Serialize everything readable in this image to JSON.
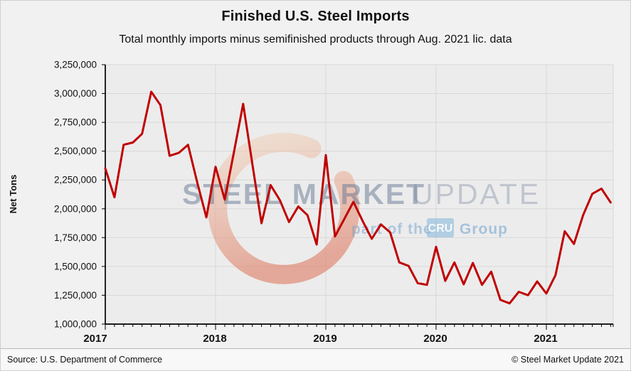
{
  "header": {
    "title": "Finished U.S. Steel Imports",
    "subtitle": "Total monthly imports minus semifinished products through Aug. 2021 lic. data"
  },
  "footer": {
    "source": "Source: U.S. Department of Commerce",
    "copyright": "© Steel Market Update 2021"
  },
  "watermark": {
    "line1_strong": "STEEL MARKET",
    "line1_light": "UPDATE",
    "line2_prefix": "part of the",
    "line2_box": "CRU",
    "line2_suffix": "Group"
  },
  "chart_data": {
    "type": "line",
    "title": "Finished U.S. Steel Imports",
    "subtitle": "Total monthly imports minus semifinished products through Aug. 2021 lic. data",
    "xlabel": "",
    "ylabel": "Net Tons",
    "x_axis_note": "Monthly, Jan 2017 through Aug 2021",
    "ylim": [
      1000000,
      3250000
    ],
    "y_tick_step": 250000,
    "y_tick_labels": [
      "1,000,000",
      "1,250,000",
      "1,500,000",
      "1,750,000",
      "2,000,000",
      "2,250,000",
      "2,500,000",
      "2,750,000",
      "3,000,000",
      "3,250,000"
    ],
    "x_year_labels": [
      "2017",
      "2018",
      "2019",
      "2020",
      "2021"
    ],
    "grid": true,
    "legend_position": "none",
    "line_color": "#c00000",
    "series": [
      {
        "name": "Finished U.S. steel imports (net tons)",
        "by_year": {
          "2017": [
            2350000,
            2100000,
            2555000,
            2575000,
            2650000,
            3015000,
            2900000,
            2460000,
            2485000,
            2555000,
            2230000,
            1925000
          ],
          "2018": [
            2365000,
            2080000,
            2490000,
            2910000,
            2390000,
            1875000,
            2205000,
            2075000,
            1885000,
            2020000,
            1945000,
            1690000
          ],
          "2019": [
            2465000,
            1760000,
            1910000,
            2060000,
            1895000,
            1740000,
            1865000,
            1795000,
            1535000,
            1505000,
            1355000,
            1340000
          ],
          "2020": [
            1670000,
            1375000,
            1535000,
            1345000,
            1530000,
            1340000,
            1455000,
            1210000,
            1180000,
            1280000,
            1250000,
            1370000
          ],
          "2021": [
            1265000,
            1425000,
            1805000,
            1695000,
            1945000,
            2130000,
            2175000,
            2055000
          ]
        }
      }
    ]
  }
}
